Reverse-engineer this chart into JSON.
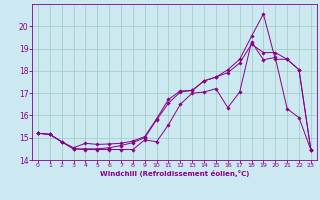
{
  "xlabel": "Windchill (Refroidissement éolien,°C)",
  "bg_color": "#cce8f0",
  "line_color": "#880088",
  "grid_color": "#99ccbb",
  "xlim": [
    -0.5,
    23.5
  ],
  "ylim": [
    14,
    21
  ],
  "yticks": [
    14,
    15,
    16,
    17,
    18,
    19,
    20
  ],
  "xticks": [
    0,
    1,
    2,
    3,
    4,
    5,
    6,
    7,
    8,
    9,
    10,
    11,
    12,
    13,
    14,
    15,
    16,
    17,
    18,
    19,
    20,
    21,
    22,
    23
  ],
  "line1_x": [
    0,
    1,
    2,
    3,
    4,
    5,
    6,
    7,
    8,
    9,
    10,
    11,
    12,
    13,
    14,
    15,
    16,
    17,
    18,
    19,
    20,
    21,
    22,
    23
  ],
  "line1_y": [
    15.2,
    15.15,
    14.82,
    14.5,
    14.47,
    14.47,
    14.47,
    14.47,
    14.47,
    14.9,
    14.82,
    15.58,
    16.5,
    17.0,
    17.05,
    17.2,
    16.35,
    17.05,
    19.3,
    18.5,
    18.6,
    16.3,
    15.9,
    14.45
  ],
  "line2_x": [
    0,
    1,
    2,
    3,
    4,
    5,
    6,
    7,
    8,
    9,
    10,
    11,
    12,
    13,
    14,
    15,
    16,
    17,
    18,
    19,
    20,
    21,
    22,
    23
  ],
  "line2_y": [
    15.2,
    15.15,
    14.82,
    14.55,
    14.75,
    14.7,
    14.72,
    14.75,
    14.85,
    15.05,
    15.85,
    16.72,
    17.1,
    17.12,
    17.55,
    17.72,
    18.05,
    18.52,
    19.55,
    20.55,
    18.52,
    18.52,
    18.05,
    14.45
  ],
  "line3_x": [
    0,
    1,
    2,
    3,
    4,
    5,
    6,
    7,
    8,
    9,
    10,
    11,
    12,
    13,
    14,
    15,
    16,
    17,
    18,
    19,
    20,
    21,
    22,
    23
  ],
  "line3_y": [
    15.2,
    15.15,
    14.82,
    14.5,
    14.5,
    14.5,
    14.55,
    14.65,
    14.78,
    15.0,
    15.8,
    16.55,
    17.05,
    17.12,
    17.55,
    17.72,
    17.92,
    18.35,
    19.2,
    18.82,
    18.82,
    18.52,
    18.05,
    14.45
  ]
}
